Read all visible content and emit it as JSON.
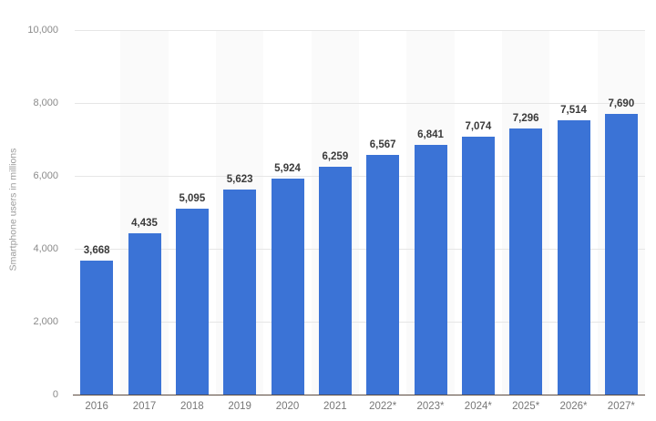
{
  "chart_data": {
    "type": "bar",
    "title": "",
    "xlabel": "",
    "ylabel": "Smartphone users in millions",
    "ylim": [
      0,
      10000
    ],
    "yticks": [
      0,
      2000,
      4000,
      6000,
      8000,
      10000
    ],
    "ytick_labels": [
      "0",
      "2,000",
      "4,000",
      "6,000",
      "8,000",
      "10,000"
    ],
    "grid": true,
    "legend": null,
    "bar_color": "#3b73d6",
    "categories": [
      "2016",
      "2017",
      "2018",
      "2019",
      "2020",
      "2021",
      "2022*",
      "2023*",
      "2024*",
      "2025*",
      "2026*",
      "2027*"
    ],
    "values": [
      3668,
      4435,
      5095,
      5623,
      5924,
      6259,
      6567,
      6841,
      7074,
      7296,
      7514,
      7690
    ],
    "value_labels": [
      "3,668",
      "4,435",
      "5,095",
      "5,623",
      "5,924",
      "6,259",
      "6,567",
      "6,841",
      "7,074",
      "7,296",
      "7,514",
      "7,690"
    ]
  }
}
